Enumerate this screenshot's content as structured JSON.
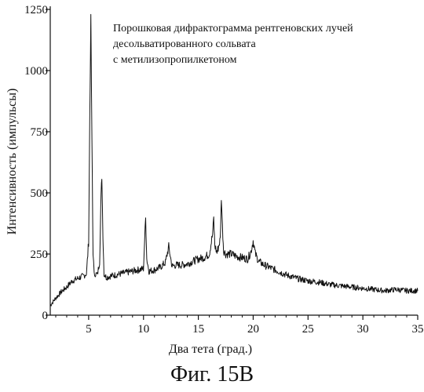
{
  "figure_caption": "Фиг. 15В",
  "chart_data": {
    "type": "line",
    "title": "",
    "annotation": [
      "Порошковая дифрактограмма рентгеновских лучей",
      "десольватированного сольвата",
      "с метилизопропилкетоном"
    ],
    "xlabel": "Два тета (град.)",
    "ylabel": "Интенсивность (импульсы)",
    "xlim": [
      1.5,
      35
    ],
    "ylim": [
      0,
      1250
    ],
    "xticks": [
      5,
      10,
      15,
      20,
      25,
      30,
      35
    ],
    "yticks": [
      0,
      250,
      500,
      750,
      1000,
      1250
    ],
    "xtick_labels": [
      "5",
      "10",
      "15",
      "20",
      "25",
      "30",
      "35"
    ],
    "ytick_labels": [
      "0",
      "250",
      "500",
      "750",
      "1000",
      "1250"
    ],
    "grid": false,
    "series": [
      {
        "x": [
          1.5,
          2.0,
          2.5,
          3.0,
          3.5,
          4.0,
          4.5,
          4.8,
          5.0,
          5.1,
          5.2,
          5.3,
          5.4,
          5.5,
          5.6,
          5.8,
          6.0,
          6.1,
          6.2,
          6.3,
          6.4,
          6.6,
          7.0,
          7.5,
          8.0,
          8.5,
          9.0,
          9.5,
          10.0,
          10.1,
          10.2,
          10.3,
          10.5,
          11.0,
          11.5,
          12.0,
          12.3,
          12.6,
          13.0,
          13.5,
          14.0,
          14.5,
          15.0,
          15.5,
          16.0,
          16.3,
          16.4,
          16.5,
          16.7,
          17.0,
          17.1,
          17.2,
          17.3,
          17.5,
          18.0,
          18.5,
          19.0,
          19.5,
          19.8,
          20.0,
          20.2,
          20.5,
          21.0,
          21.5,
          22.0,
          22.5,
          23.0,
          24.0,
          25.0,
          26.0,
          27.0,
          28.0,
          29.0,
          30.0,
          31.0,
          32.0,
          33.0,
          34.0,
          35.0
        ],
        "y": [
          40,
          70,
          95,
          115,
          140,
          150,
          160,
          170,
          300,
          800,
          1210,
          700,
          260,
          165,
          170,
          165,
          220,
          440,
          570,
          330,
          170,
          155,
          160,
          165,
          170,
          175,
          180,
          185,
          190,
          300,
          395,
          230,
          180,
          185,
          195,
          215,
          280,
          200,
          205,
          205,
          210,
          220,
          230,
          235,
          250,
          330,
          395,
          285,
          255,
          310,
          485,
          360,
          265,
          250,
          250,
          240,
          235,
          230,
          260,
          305,
          250,
          220,
          205,
          195,
          185,
          175,
          165,
          150,
          140,
          135,
          125,
          120,
          115,
          110,
          105,
          100,
          105,
          100,
          100
        ]
      }
    ]
  }
}
